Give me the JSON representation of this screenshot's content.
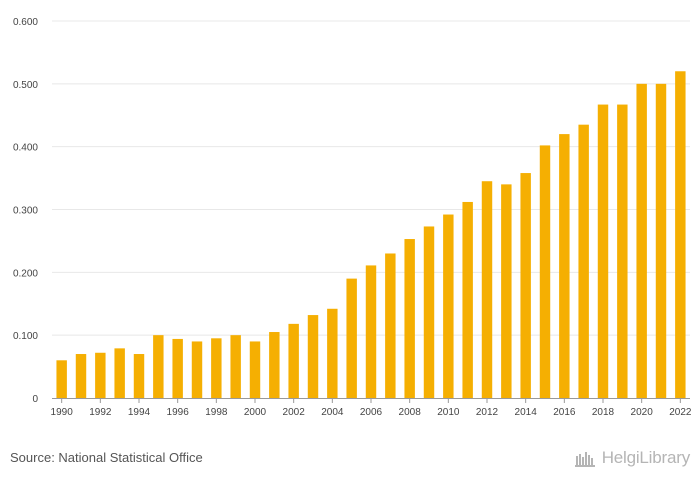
{
  "chart_data": {
    "type": "bar",
    "categories": [
      "1990",
      "1991",
      "1992",
      "1993",
      "1994",
      "1995",
      "1996",
      "1997",
      "1998",
      "1999",
      "2000",
      "2001",
      "2002",
      "2003",
      "2004",
      "2005",
      "2006",
      "2007",
      "2008",
      "2009",
      "2010",
      "2011",
      "2012",
      "2013",
      "2014",
      "2015",
      "2016",
      "2017",
      "2018",
      "2019",
      "2020",
      "2021",
      "2022"
    ],
    "values": [
      0.06,
      0.07,
      0.072,
      0.079,
      0.07,
      0.1,
      0.094,
      0.09,
      0.095,
      0.1,
      0.09,
      0.105,
      0.118,
      0.132,
      0.142,
      0.19,
      0.211,
      0.23,
      0.253,
      0.273,
      0.292,
      0.312,
      0.345,
      0.34,
      0.358,
      0.402,
      0.42,
      0.435,
      0.467,
      0.467,
      0.5,
      0.5,
      0.52
    ],
    "x_tick_labels": [
      "1990",
      "1992",
      "1994",
      "1996",
      "1998",
      "2000",
      "2002",
      "2004",
      "2006",
      "2008",
      "2010",
      "2012",
      "2014",
      "2016",
      "2018",
      "2020",
      "2022"
    ],
    "y_tick_labels": [
      "0",
      "0.100",
      "0.200",
      "0.300",
      "0.400",
      "0.500",
      "0.600"
    ],
    "y_ticks": [
      0,
      0.1,
      0.2,
      0.3,
      0.4,
      0.5,
      0.6
    ],
    "ylim": [
      0,
      0.6
    ],
    "grid": true,
    "title": "",
    "xlabel": "",
    "ylabel": "",
    "bar_color": "#F5AF02",
    "grid_color": "#e8e8e8",
    "axis_color": "#999999"
  },
  "footer": {
    "source": "Source: National Statistical Office",
    "brand": "HelgiLibrary",
    "brand_icon": "library-logo-icon"
  }
}
